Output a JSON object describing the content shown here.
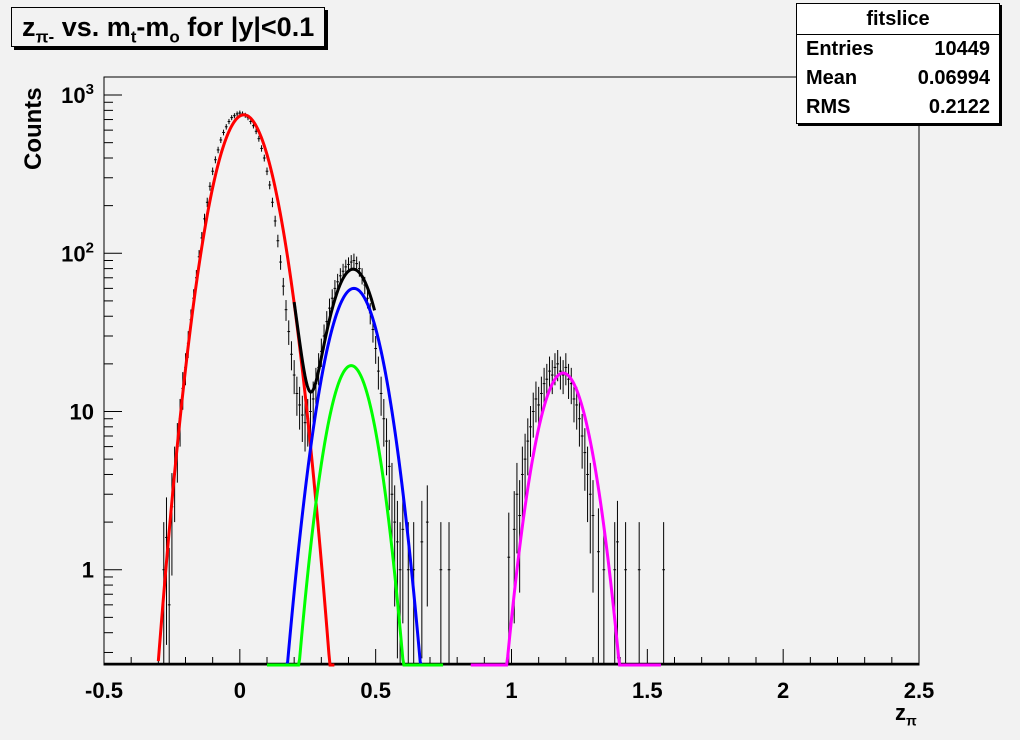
{
  "title": {
    "prefix": "z",
    "prefix_sub": "π-",
    "middle": " vs. m",
    "middle_sub": "t",
    "dash": "-m",
    "dash_sub": "o",
    "suffix": " for |y|<0.1"
  },
  "stats_box": {
    "name": "fitslice",
    "rows": [
      {
        "label": "Entries",
        "value": "10449"
      },
      {
        "label": "Mean",
        "value": "0.06994"
      },
      {
        "label": "RMS",
        "value": "0.2122"
      }
    ]
  },
  "axes": {
    "x_title_main": "z",
    "x_title_sub": "π",
    "y_title": "Counts"
  },
  "colors": {
    "background": "#f2f2f2",
    "histogram": "#000000",
    "total_fit": "#000000",
    "pion_fit": "#ff0000",
    "second_fit": "#0000ff",
    "third_fit": "#00ff00",
    "fourth_fit": "#ff00ff"
  },
  "chart_data": {
    "type": "line",
    "log_y": true,
    "xlim": [
      -0.5,
      2.5
    ],
    "ylim": [
      0.25,
      1300
    ],
    "x_ticks": [
      {
        "value": -0.5,
        "label": "-0.5"
      },
      {
        "value": 0,
        "label": "0"
      },
      {
        "value": 0.5,
        "label": "0.5"
      },
      {
        "value": 1,
        "label": "1"
      },
      {
        "value": 1.5,
        "label": "1.5"
      },
      {
        "value": 2,
        "label": "2"
      },
      {
        "value": 2.5,
        "label": "2.5"
      }
    ],
    "y_ticks": [
      {
        "value": 1,
        "label": "1",
        "sup": ""
      },
      {
        "value": 10,
        "label": "10",
        "sup": ""
      },
      {
        "value": 100,
        "label": "10",
        "sup": "2"
      },
      {
        "value": 1000,
        "label": "10",
        "sup": "3"
      }
    ],
    "histogram": {
      "bin_width": 0.01,
      "points": [
        [
          -0.28,
          1
        ],
        [
          -0.27,
          1.6
        ],
        [
          -0.26,
          0.6
        ],
        [
          -0.25,
          2.5
        ],
        [
          -0.24,
          4
        ],
        [
          -0.23,
          6
        ],
        [
          -0.22,
          9
        ],
        [
          -0.21,
          14
        ],
        [
          -0.2,
          19
        ],
        [
          -0.19,
          27
        ],
        [
          -0.18,
          38
        ],
        [
          -0.17,
          52
        ],
        [
          -0.16,
          70
        ],
        [
          -0.15,
          95
        ],
        [
          -0.14,
          125
        ],
        [
          -0.13,
          165
        ],
        [
          -0.12,
          210
        ],
        [
          -0.11,
          265
        ],
        [
          -0.1,
          330
        ],
        [
          -0.09,
          390
        ],
        [
          -0.08,
          450
        ],
        [
          -0.07,
          520
        ],
        [
          -0.06,
          580
        ],
        [
          -0.05,
          630
        ],
        [
          -0.04,
          680
        ],
        [
          -0.03,
          720
        ],
        [
          -0.02,
          740
        ],
        [
          -0.01,
          760
        ],
        [
          0,
          770
        ],
        [
          0.01,
          760
        ],
        [
          0.02,
          745
        ],
        [
          0.03,
          720
        ],
        [
          0.04,
          680
        ],
        [
          0.05,
          640
        ],
        [
          0.06,
          590
        ],
        [
          0.07,
          530
        ],
        [
          0.08,
          460
        ],
        [
          0.09,
          400
        ],
        [
          0.1,
          330
        ],
        [
          0.11,
          270
        ],
        [
          0.12,
          210
        ],
        [
          0.13,
          160
        ],
        [
          0.14,
          120
        ],
        [
          0.15,
          88
        ],
        [
          0.16,
          62
        ],
        [
          0.17,
          44
        ],
        [
          0.18,
          32
        ],
        [
          0.19,
          23
        ],
        [
          0.2,
          17
        ],
        [
          0.21,
          13
        ],
        [
          0.22,
          11
        ],
        [
          0.23,
          9.5
        ],
        [
          0.24,
          8.5
        ],
        [
          0.25,
          9
        ],
        [
          0.26,
          10
        ],
        [
          0.27,
          12
        ],
        [
          0.28,
          15
        ],
        [
          0.29,
          19
        ],
        [
          0.3,
          24
        ],
        [
          0.31,
          30
        ],
        [
          0.32,
          37
        ],
        [
          0.33,
          45
        ],
        [
          0.34,
          52
        ],
        [
          0.35,
          60
        ],
        [
          0.36,
          66
        ],
        [
          0.37,
          72
        ],
        [
          0.38,
          77
        ],
        [
          0.39,
          82
        ],
        [
          0.4,
          85
        ],
        [
          0.41,
          88
        ],
        [
          0.42,
          90
        ],
        [
          0.43,
          86
        ],
        [
          0.44,
          80
        ],
        [
          0.45,
          72
        ],
        [
          0.46,
          63
        ],
        [
          0.47,
          52
        ],
        [
          0.48,
          42
        ],
        [
          0.49,
          33
        ],
        [
          0.5,
          25
        ],
        [
          0.51,
          18
        ],
        [
          0.52,
          13
        ],
        [
          0.53,
          9
        ],
        [
          0.54,
          6.5
        ],
        [
          0.55,
          4.5
        ],
        [
          0.56,
          3
        ],
        [
          0.57,
          2
        ],
        [
          0.58,
          1.5
        ],
        [
          0.59,
          1
        ],
        [
          0.6,
          1.8
        ],
        [
          0.62,
          1
        ],
        [
          0.64,
          1
        ],
        [
          0.67,
          1.5
        ],
        [
          0.69,
          2
        ],
        [
          0.74,
          1
        ],
        [
          0.77,
          1
        ],
        [
          0.99,
          1.2
        ],
        [
          1.01,
          1.8
        ],
        [
          1.02,
          3
        ],
        [
          1.03,
          2.2
        ],
        [
          1.04,
          4
        ],
        [
          1.05,
          5
        ],
        [
          1.06,
          6.5
        ],
        [
          1.07,
          8
        ],
        [
          1.08,
          10
        ],
        [
          1.09,
          12
        ],
        [
          1.1,
          11
        ],
        [
          1.11,
          13
        ],
        [
          1.12,
          15
        ],
        [
          1.13,
          16
        ],
        [
          1.14,
          18
        ],
        [
          1.15,
          17
        ],
        [
          1.16,
          19
        ],
        [
          1.17,
          20
        ],
        [
          1.18,
          18
        ],
        [
          1.19,
          17
        ],
        [
          1.2,
          19
        ],
        [
          1.21,
          16
        ],
        [
          1.22,
          15
        ],
        [
          1.23,
          12
        ],
        [
          1.24,
          11
        ],
        [
          1.25,
          9
        ],
        [
          1.26,
          7
        ],
        [
          1.27,
          5.5
        ],
        [
          1.28,
          4
        ],
        [
          1.29,
          3
        ],
        [
          1.3,
          2.2
        ],
        [
          1.32,
          1.3
        ],
        [
          1.34,
          1
        ],
        [
          1.38,
          1
        ],
        [
          1.39,
          1.5
        ],
        [
          1.42,
          1
        ],
        [
          1.47,
          1
        ],
        [
          1.56,
          1
        ]
      ]
    },
    "fits": [
      {
        "component": "pion",
        "color": "#ff0000",
        "amplitude": 750,
        "mean": 0.015,
        "sigma": 0.079,
        "x_range": [
          -0.3,
          0.35
        ]
      },
      {
        "component": "second",
        "color": "#0000ff",
        "amplitude": 60,
        "mean": 0.42,
        "sigma": 0.074,
        "x_range": [
          0.1,
          0.75
        ]
      },
      {
        "component": "third",
        "color": "#00ff00",
        "amplitude": 19.5,
        "mean": 0.41,
        "sigma": 0.065,
        "x_range": [
          0.1,
          0.75
        ]
      },
      {
        "component": "fourth",
        "color": "#ff00ff",
        "amplitude": 17.5,
        "mean": 1.19,
        "sigma": 0.071,
        "x_range": [
          0.85,
          1.55
        ]
      }
    ]
  }
}
